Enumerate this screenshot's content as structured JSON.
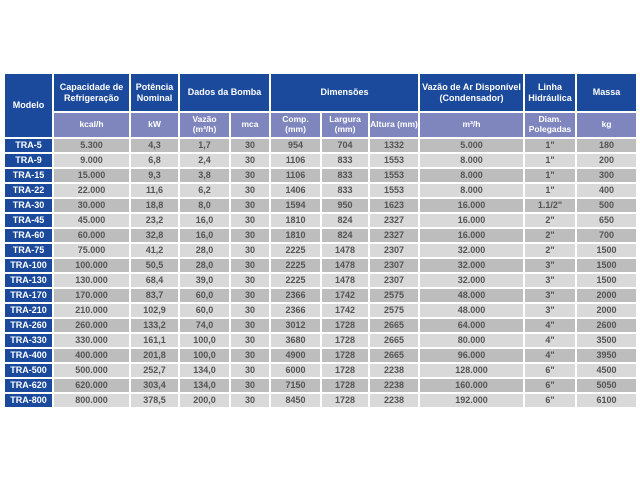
{
  "colors": {
    "header_blue": "#1b4a9c",
    "unit_lavender": "#7f86bd",
    "row_dark_gray": "#bdbdbd",
    "row_light_gray": "#d9d9d9",
    "data_text_gray": "#545454",
    "page_background": "#ffffff"
  },
  "table": {
    "header": {
      "modelo": "Modelo",
      "capacidade": "Capacidade de Refrigeração",
      "potencia": "Potência Nominal",
      "bomba": "Dados da Bomba",
      "dimensoes": "Dimensões",
      "vazao_ar": "Vazão de Ar Disponível (Condensador)",
      "linha": "Linha Hidráulica",
      "massa": "Massa"
    },
    "units": {
      "kcal": "kcal/h",
      "kw": "kW",
      "vazao": "Vazão (m³/h)",
      "mca": "mca",
      "comp": "Comp. (mm)",
      "largura": "Largura (mm)",
      "altura": "Altura (mm)",
      "ar": "m³/h",
      "diam": "Diam. Polegadas",
      "kg": "kg"
    },
    "rows": [
      [
        "TRA-5",
        "5.300",
        "4,3",
        "1,7",
        "30",
        "954",
        "704",
        "1332",
        "5.000",
        "1\"",
        "180"
      ],
      [
        "TRA-9",
        "9.000",
        "6,8",
        "2,4",
        "30",
        "1106",
        "833",
        "1553",
        "8.000",
        "1\"",
        "200"
      ],
      [
        "TRA-15",
        "15.000",
        "9,3",
        "3,8",
        "30",
        "1106",
        "833",
        "1553",
        "8.000",
        "1\"",
        "300"
      ],
      [
        "TRA-22",
        "22.000",
        "11,6",
        "6,2",
        "30",
        "1406",
        "833",
        "1553",
        "8.000",
        "1\"",
        "400"
      ],
      [
        "TRA-30",
        "30.000",
        "18,8",
        "8,0",
        "30",
        "1594",
        "950",
        "1623",
        "16.000",
        "1.1/2\"",
        "500"
      ],
      [
        "TRA-45",
        "45.000",
        "23,2",
        "16,0",
        "30",
        "1810",
        "824",
        "2327",
        "16.000",
        "2\"",
        "650"
      ],
      [
        "TRA-60",
        "60.000",
        "32,8",
        "16,0",
        "30",
        "1810",
        "824",
        "2327",
        "16.000",
        "2\"",
        "700"
      ],
      [
        "TRA-75",
        "75.000",
        "41,2",
        "28,0",
        "30",
        "2225",
        "1478",
        "2307",
        "32.000",
        "2\"",
        "1500"
      ],
      [
        "TRA-100",
        "100.000",
        "50,5",
        "28,0",
        "30",
        "2225",
        "1478",
        "2307",
        "32.000",
        "3\"",
        "1500"
      ],
      [
        "TRA-130",
        "130.000",
        "68,4",
        "39,0",
        "30",
        "2225",
        "1478",
        "2307",
        "32.000",
        "3\"",
        "1500"
      ],
      [
        "TRA-170",
        "170.000",
        "83,7",
        "60,0",
        "30",
        "2366",
        "1742",
        "2575",
        "48.000",
        "3\"",
        "2000"
      ],
      [
        "TRA-210",
        "210.000",
        "102,9",
        "60,0",
        "30",
        "2366",
        "1742",
        "2575",
        "48.000",
        "3\"",
        "2000"
      ],
      [
        "TRA-260",
        "260.000",
        "133,2",
        "74,0",
        "30",
        "3012",
        "1728",
        "2665",
        "64.000",
        "4\"",
        "2600"
      ],
      [
        "TRA-330",
        "330.000",
        "161,1",
        "100,0",
        "30",
        "3680",
        "1728",
        "2665",
        "80.000",
        "4\"",
        "3500"
      ],
      [
        "TRA-400",
        "400.000",
        "201,8",
        "100,0",
        "30",
        "4900",
        "1728",
        "2665",
        "96.000",
        "4\"",
        "3950"
      ],
      [
        "TRA-500",
        "500.000",
        "252,7",
        "134,0",
        "30",
        "6000",
        "1728",
        "2238",
        "128.000",
        "6\"",
        "4500"
      ],
      [
        "TRA-620",
        "620.000",
        "303,4",
        "134,0",
        "30",
        "7150",
        "1728",
        "2238",
        "160.000",
        "6\"",
        "5050"
      ],
      [
        "TRA-800",
        "800.000",
        "378,5",
        "200,0",
        "30",
        "8450",
        "1728",
        "2238",
        "192.000",
        "6\"",
        "6100"
      ]
    ]
  }
}
